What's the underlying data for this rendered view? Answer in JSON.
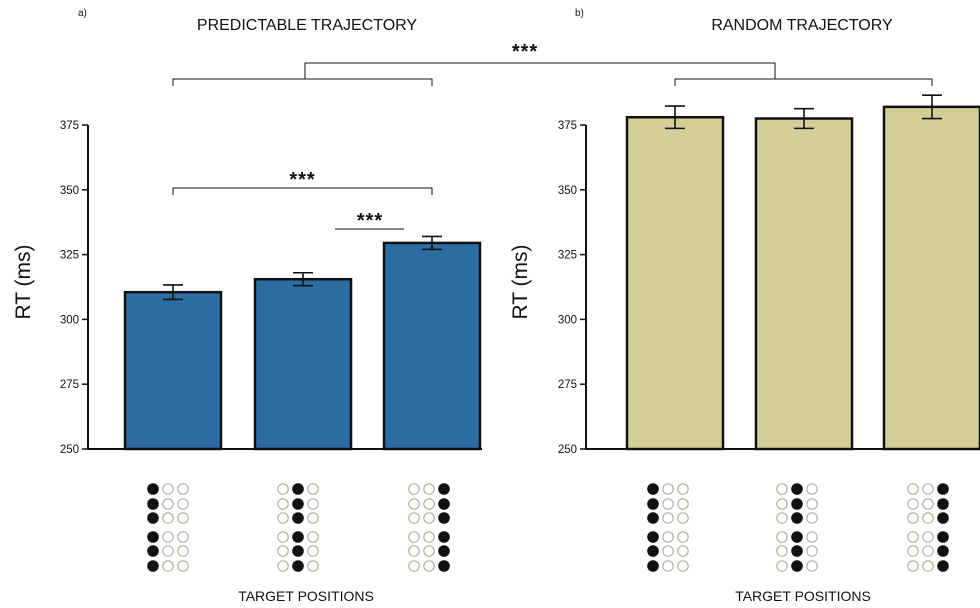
{
  "chart_data": [
    {
      "type": "bar",
      "panel_letter": "a)",
      "title": "PREDICTABLE TRAJECTORY",
      "ylabel": "RT (ms)",
      "xlabel": "TARGET POSITIONS",
      "ylim": [
        250,
        375
      ],
      "yticks": [
        250,
        275,
        300,
        325,
        350,
        375
      ],
      "series": [
        {
          "values": [
            310.5,
            315.5,
            329.5
          ],
          "errors": [
            2.8,
            2.5,
            2.5
          ],
          "color": "#2e6da4"
        }
      ],
      "significance": [
        {
          "label": "***",
          "from": 0,
          "to": 2
        },
        {
          "label": "***",
          "from": 1,
          "to": 2
        }
      ]
    },
    {
      "type": "bar",
      "panel_letter": "b)",
      "title": "RANDOM TRAJECTORY",
      "ylabel": "RT (ms)",
      "xlabel": "TARGET POSITIONS",
      "ylim": [
        250,
        375
      ],
      "yticks": [
        250,
        275,
        300,
        325,
        350,
        375
      ],
      "series": [
        {
          "values": [
            378,
            377.5,
            382
          ],
          "errors": [
            4.3,
            3.8,
            4.5
          ],
          "color": "#d4cf98"
        }
      ],
      "significance": []
    }
  ],
  "between_panels_significance": "***",
  "target_patterns": [
    {
      "filled_column": 0
    },
    {
      "filled_column": 1
    },
    {
      "filled_column": 2
    }
  ],
  "colors": {
    "axis": "#111111",
    "bar_outline": "#111111",
    "dot_outline": "#b9aea4",
    "dot_fill": "#111111"
  }
}
